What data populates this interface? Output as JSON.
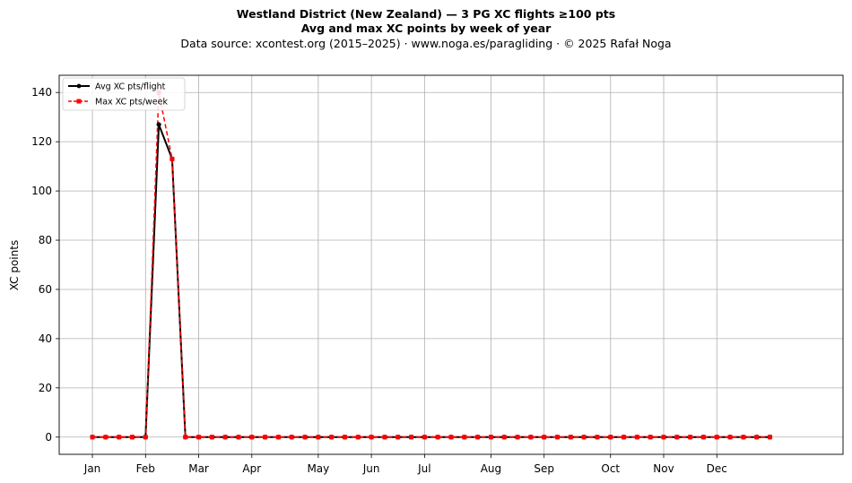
{
  "colors": {
    "avg": "#000000",
    "max": "#ff0000",
    "grid": "#b0b0b0"
  },
  "chart_data": {
    "type": "line",
    "title": "Westland District (New Zealand)  —  3 PG XC flights ≥100 pts",
    "subtitle": "Avg and max XC points by week of year",
    "source_note": "Data source: xcontest.org (2015–2025)  ·  www.noga.es/paragliding  ·  © 2025 Rafał Noga",
    "xlabel": "",
    "ylabel": "XC points",
    "x_unit": "week of year",
    "xlim": [
      -2.5,
      56.5
    ],
    "ylim": [
      -7,
      147
    ],
    "grid": true,
    "legend_position": "top-left",
    "x_ticks": [
      {
        "label": "Jan",
        "x": 0
      },
      {
        "label": "Feb",
        "x": 4
      },
      {
        "label": "Mar",
        "x": 8
      },
      {
        "label": "Apr",
        "x": 12
      },
      {
        "label": "May",
        "x": 17
      },
      {
        "label": "Jun",
        "x": 21
      },
      {
        "label": "Jul",
        "x": 25
      },
      {
        "label": "Aug",
        "x": 30
      },
      {
        "label": "Sep",
        "x": 34
      },
      {
        "label": "Oct",
        "x": 39
      },
      {
        "label": "Nov",
        "x": 43
      },
      {
        "label": "Dec",
        "x": 47
      }
    ],
    "y_ticks": [
      0,
      20,
      40,
      60,
      80,
      100,
      120,
      140
    ],
    "x": [
      0,
      1,
      2,
      3,
      4,
      5,
      6,
      7,
      8,
      9,
      10,
      11,
      12,
      13,
      14,
      15,
      16,
      17,
      18,
      19,
      20,
      21,
      22,
      23,
      24,
      25,
      26,
      27,
      28,
      29,
      30,
      31,
      32,
      33,
      34,
      35,
      36,
      37,
      38,
      39,
      40,
      41,
      42,
      43,
      44,
      45,
      46,
      47,
      48,
      49,
      50,
      51
    ],
    "series": [
      {
        "name": "Avg XC pts/flight",
        "style": "solid-circle",
        "values": [
          0,
          0,
          0,
          0,
          0,
          127,
          113,
          0,
          0,
          0,
          0,
          0,
          0,
          0,
          0,
          0,
          0,
          0,
          0,
          0,
          0,
          0,
          0,
          0,
          0,
          0,
          0,
          0,
          0,
          0,
          0,
          0,
          0,
          0,
          0,
          0,
          0,
          0,
          0,
          0,
          0,
          0,
          0,
          0,
          0,
          0,
          0,
          0,
          0,
          0,
          0,
          0
        ]
      },
      {
        "name": "Max XC pts/week",
        "style": "dashed-square",
        "values": [
          0,
          0,
          0,
          0,
          0,
          140,
          113,
          0,
          0,
          0,
          0,
          0,
          0,
          0,
          0,
          0,
          0,
          0,
          0,
          0,
          0,
          0,
          0,
          0,
          0,
          0,
          0,
          0,
          0,
          0,
          0,
          0,
          0,
          0,
          0,
          0,
          0,
          0,
          0,
          0,
          0,
          0,
          0,
          0,
          0,
          0,
          0,
          0,
          0,
          0,
          0,
          0
        ]
      }
    ]
  }
}
